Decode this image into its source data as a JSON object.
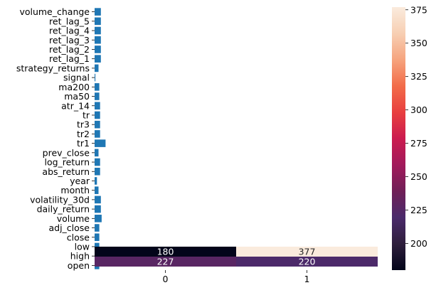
{
  "chart_data": [
    {
      "type": "bar",
      "orientation": "horizontal",
      "categories": [
        "open",
        "high",
        "low",
        "close",
        "adj_close",
        "volume",
        "daily_return",
        "volatility_30d",
        "month",
        "year",
        "abs_return",
        "log_return",
        "prev_close",
        "tr1",
        "tr2",
        "tr3",
        "tr",
        "atr_14",
        "ma50",
        "ma200",
        "signal",
        "strategy_returns",
        "ret_lag_1",
        "ret_lag_2",
        "ret_lag_3",
        "ret_lag_4",
        "ret_lag_5",
        "volume_change"
      ],
      "values": [
        0.06,
        0.06,
        0.06,
        0.06,
        0.06,
        0.09,
        0.08,
        0.08,
        0.05,
        0.03,
        0.07,
        0.07,
        0.05,
        0.14,
        0.07,
        0.07,
        0.07,
        0.07,
        0.06,
        0.06,
        0.01,
        0.05,
        0.08,
        0.08,
        0.08,
        0.08,
        0.08,
        0.08
      ],
      "series_color": "#1f77b4",
      "xaxis": "hidden"
    },
    {
      "type": "heatmap",
      "rows": [
        "high",
        "open"
      ],
      "x": [
        "0",
        "1"
      ],
      "values": [
        [
          180,
          377
        ],
        [
          227,
          220
        ]
      ],
      "colormap": "rocket",
      "colorbar": {
        "min": 180,
        "max": 377,
        "ticks": [
          "200",
          "225",
          "250",
          "275",
          "300",
          "325",
          "350",
          "375"
        ]
      }
    }
  ],
  "colormap_stops": [
    "#03051a",
    "#2e1e3c",
    "#4b2a6b",
    "#701f57",
    "#a11a5b",
    "#cb1b4f",
    "#e83f3f",
    "#f26c49",
    "#f6a47e",
    "#f7cfb3",
    "#faebdd"
  ]
}
